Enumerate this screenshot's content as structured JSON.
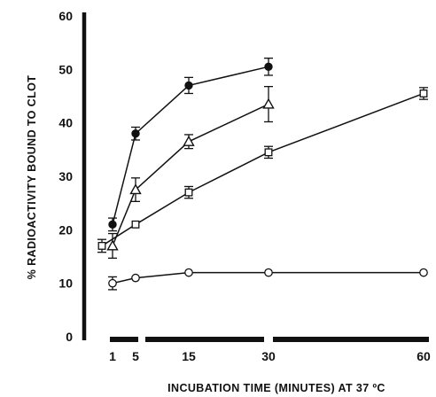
{
  "chart_data": {
    "type": "line",
    "title": "",
    "xlabel": "INCUBATION TIME (MINUTES) AT 37 ºC",
    "ylabel": "% RADIOACTIVITY BOUND TO CLOT",
    "xticks": [
      1,
      5,
      15,
      30,
      60
    ],
    "yticks": [
      0,
      10,
      20,
      30,
      40,
      50,
      60
    ],
    "ylim": [
      0,
      60
    ],
    "x_axis_style": "broken",
    "grid": false,
    "legend": "none",
    "marker_color": "#111111",
    "series": [
      {
        "marker": "filled-circle",
        "points": [
          {
            "x": 1,
            "y": 21,
            "err": 1.2
          },
          {
            "x": 5,
            "y": 38,
            "err": 1.2
          },
          {
            "x": 15,
            "y": 47,
            "err": 1.5
          },
          {
            "x": 30,
            "y": 50.5,
            "err": 1.6
          }
        ]
      },
      {
        "marker": "open-triangle",
        "points": [
          {
            "x": 1,
            "y": 17,
            "err": 2.3
          },
          {
            "x": 5,
            "y": 27.5,
            "err": 2.2
          },
          {
            "x": 15,
            "y": 36.5,
            "err": 1.3
          },
          {
            "x": 30,
            "y": 43.5,
            "err": 3.3
          }
        ]
      },
      {
        "marker": "open-square",
        "points": [
          {
            "x": 0,
            "y": 17,
            "err": 1.2
          },
          {
            "x": 5,
            "y": 21,
            "err": 0
          },
          {
            "x": 15,
            "y": 27,
            "err": 1.1
          },
          {
            "x": 30,
            "y": 34.5,
            "err": 1.1
          },
          {
            "x": 60,
            "y": 45.5,
            "err": 1.1
          }
        ]
      },
      {
        "marker": "open-circle",
        "points": [
          {
            "x": 1,
            "y": 10,
            "err": 1.2
          },
          {
            "x": 5,
            "y": 11,
            "err": 0
          },
          {
            "x": 15,
            "y": 12,
            "err": 0
          },
          {
            "x": 30,
            "y": 12,
            "err": 0
          },
          {
            "x": 60,
            "y": 12,
            "err": 0
          }
        ]
      }
    ]
  }
}
